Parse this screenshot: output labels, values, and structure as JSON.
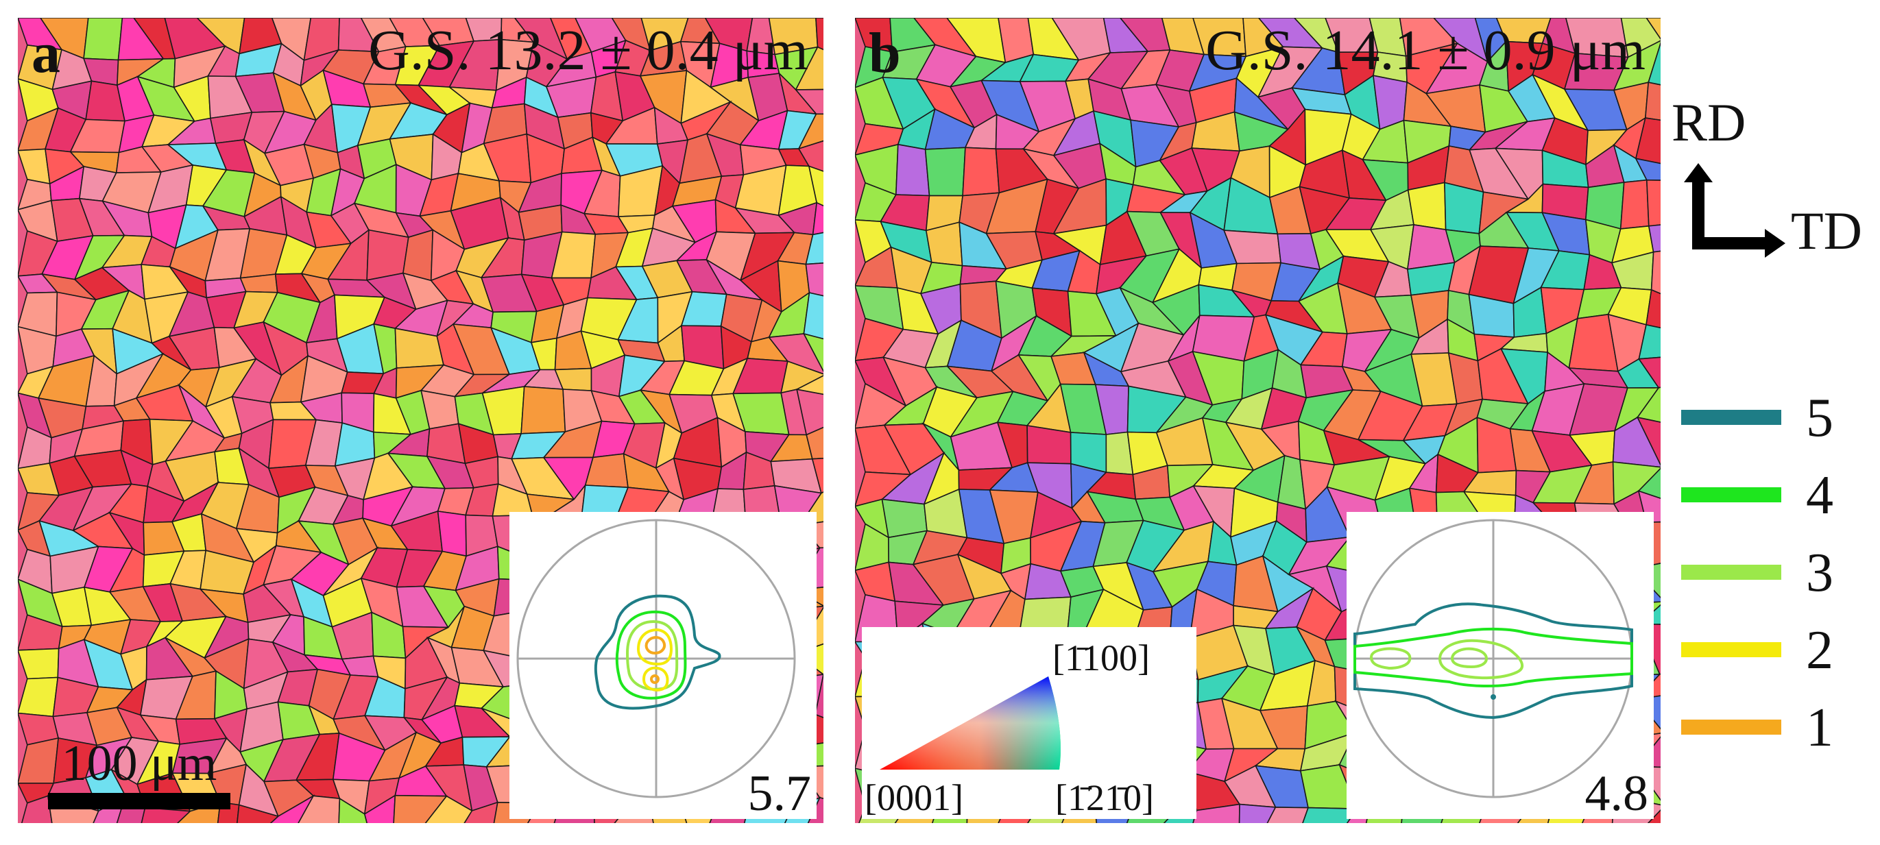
{
  "panels": {
    "a": {
      "letter": "a",
      "grain_size_label": "G.S. 13.2 ± 0.4 μm",
      "pole_figure_max": "5.7",
      "scale_bar_label": "100 μm"
    },
    "b": {
      "letter": "b",
      "grain_size_label": "G.S. 14.1 ± 0.9 μm",
      "pole_figure_max": "4.8"
    }
  },
  "ipf_key": {
    "corner_0001": "[0001]",
    "corner_1210": "[1̄21̄0]",
    "corner_1100": "[1̄100]",
    "colors": {
      "corner_0001": "#ff0000",
      "corner_1210": "#00ff00",
      "corner_1100": "#0000ff"
    }
  },
  "axes": {
    "vertical": "RD",
    "horizontal": "TD"
  },
  "contour_legend": {
    "items": [
      {
        "label": "5",
        "color": "#1e7d86"
      },
      {
        "label": "4",
        "color": "#1ee61e"
      },
      {
        "label": "3",
        "color": "#9be84a"
      },
      {
        "label": "2",
        "color": "#f4ea0a"
      },
      {
        "label": "1",
        "color": "#f5a91e"
      }
    ]
  },
  "palettes": {
    "panel_a": [
      "#e8336a",
      "#f0506e",
      "#e94a7d",
      "#f06a56",
      "#f6854e",
      "#f79a3c",
      "#ff5a5a",
      "#e42d3c",
      "#f28fa8",
      "#ee62b6",
      "#f7c64c",
      "#e0458f",
      "#ff7a7a",
      "#fb9a8c",
      "#ffd05a",
      "#9be84a",
      "#f2f03a",
      "#6fe0f0",
      "#ff3db0",
      "#f06090"
    ],
    "panel_b": [
      "#e8336a",
      "#f06a56",
      "#f6854e",
      "#7fdc6a",
      "#a2e84f",
      "#5ed96c",
      "#3ad4b8",
      "#64cfe8",
      "#f2f03a",
      "#ff5a5a",
      "#ee62b6",
      "#f7c64c",
      "#c9e86a",
      "#e42d3c",
      "#b96be0",
      "#5a7ce8",
      "#f28fa8",
      "#9be84a",
      "#ff7a7a",
      "#e0458f"
    ]
  }
}
